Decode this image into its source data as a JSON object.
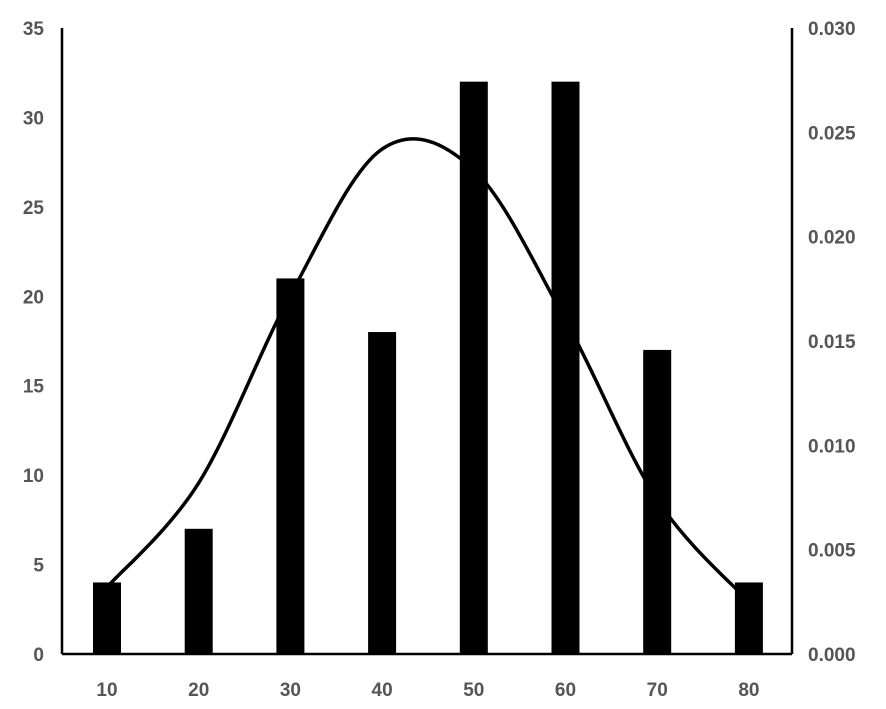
{
  "chart_data": {
    "type": "bar",
    "categories": [
      "10",
      "20",
      "30",
      "40",
      "50",
      "60",
      "70",
      "80"
    ],
    "series": [
      {
        "type": "bar",
        "axis": "left",
        "values": [
          4,
          7,
          21,
          18,
          32,
          32,
          17,
          4
        ]
      },
      {
        "type": "line",
        "axis": "right",
        "smooth": true,
        "x": [
          10,
          20,
          30,
          40,
          50,
          60,
          70,
          80
        ],
        "values": [
          0.0032,
          0.0082,
          0.0172,
          0.0242,
          0.0232,
          0.016,
          0.0074,
          0.0025
        ]
      }
    ],
    "xlabel": "",
    "ylabel": "",
    "ylim": [
      0,
      35
    ],
    "y2lim": [
      0,
      0.03
    ],
    "yticks": [
      "0",
      "5",
      "10",
      "15",
      "20",
      "25",
      "30",
      "35"
    ],
    "y2ticks": [
      "0.000",
      "0.005",
      "0.010",
      "0.015",
      "0.020",
      "0.025",
      "0.030"
    ],
    "grid": false,
    "legend": "none",
    "colors": {
      "bars": "#000000",
      "line": "#000000",
      "tick_text": "#555555"
    }
  }
}
